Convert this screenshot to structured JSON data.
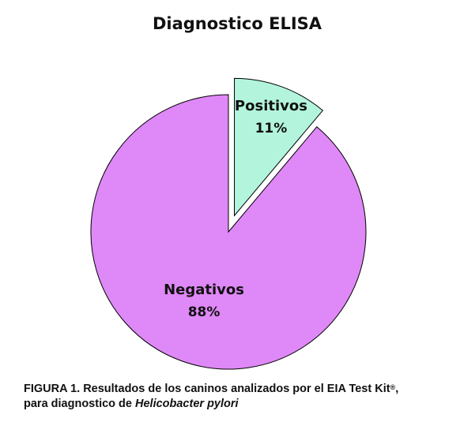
{
  "chart_data": {
    "type": "pie",
    "title": "Diagnostico ELISA",
    "exploded": "Positivos",
    "slices": [
      {
        "label": "Positivos",
        "value": 11,
        "value_label": "11%",
        "color": "#b3f5dc"
      },
      {
        "label": "Negativos",
        "value": 88,
        "value_label": "88%",
        "color": "#df88f7"
      }
    ]
  },
  "caption": {
    "line1": "FIGURA 1. Resultados de los caninos analizados por el EIA Test Kit",
    "superscript": "®",
    "line1_end": ",",
    "line2_prefix": "para diagnostico de ",
    "line2_italic": "Helicobacter pylori"
  }
}
